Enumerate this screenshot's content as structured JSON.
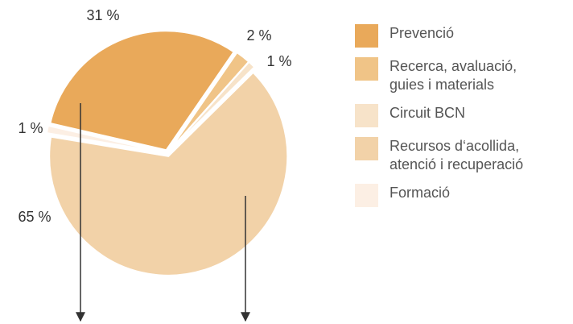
{
  "chart_data": {
    "type": "pie",
    "categories": [
      "Prevenció",
      "Recerca, avaluació,\nguies i materials",
      "Circuit BCN",
      "Recursos d‘acollida,\natenció i recuperació",
      "Formació"
    ],
    "values": [
      31,
      2,
      1,
      65,
      1
    ],
    "value_labels": [
      "31 %",
      "2 %",
      "1 %",
      "65 %",
      "1 %"
    ],
    "colors": [
      "#e9a95a",
      "#f0c487",
      "#f7e3c9",
      "#f2d2a8",
      "#fcefe4"
    ],
    "legend": "right"
  }
}
